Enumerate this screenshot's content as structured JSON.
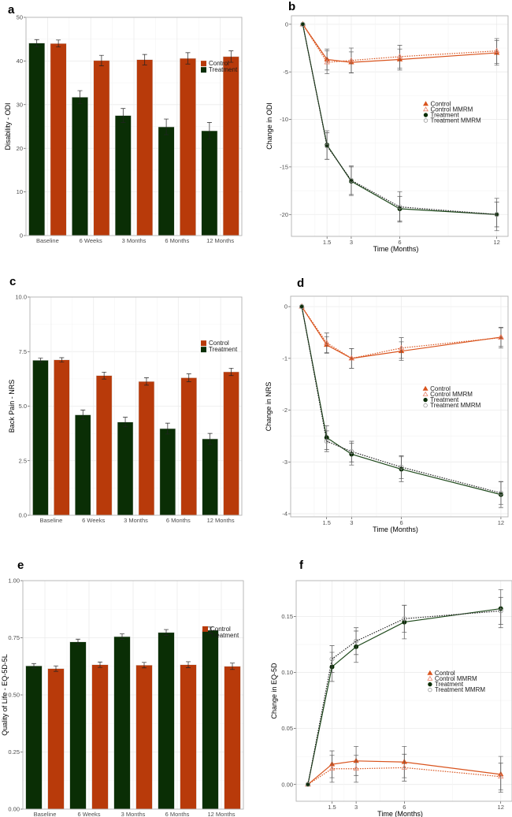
{
  "colors": {
    "control": "#b83a0a",
    "treatment": "#0a2e05",
    "control_line": "#d9541e",
    "treatment_line": "#1f4a1c",
    "mmrm_marker": "#999999",
    "errorbar": "#555555"
  },
  "chart_data": [
    {
      "panel": "a",
      "type": "bar",
      "ylabel": "Disability  - ODI",
      "ylim": [
        0,
        50
      ],
      "yticks": [
        0,
        10,
        20,
        30,
        40,
        50
      ],
      "ytick_labels": [
        "0",
        "10",
        "20",
        "30",
        "40",
        "50"
      ],
      "categories": [
        "Baseline",
        "6 Weeks",
        "3 Months",
        "6 Months",
        "12 Months"
      ],
      "legend": [
        "Control",
        "Treatment"
      ],
      "legend_position": "top-right",
      "series": [
        {
          "name": "Treatment",
          "values": [
            44.1,
            31.7,
            27.5,
            24.9,
            24.0
          ],
          "errors": [
            0.8,
            1.5,
            1.6,
            1.8,
            1.9
          ]
        },
        {
          "name": "Control",
          "values": [
            44.0,
            40.1,
            40.3,
            40.6,
            41.0
          ],
          "errors": [
            0.8,
            1.2,
            1.2,
            1.3,
            1.3
          ]
        }
      ]
    },
    {
      "panel": "b",
      "type": "line",
      "xlabel": "Time (Months)",
      "ylabel": "Change in ODI",
      "ylim": [
        -22.3,
        0.9
      ],
      "xlim": [
        -0.7,
        12.7
      ],
      "xticks": [
        1.5,
        3,
        6,
        12
      ],
      "xtick_labels": [
        "1.5",
        "3",
        "6",
        "12"
      ],
      "yticks": [
        0,
        -5,
        -10,
        -15,
        -20
      ],
      "ytick_labels": [
        "0",
        "-5",
        "-10",
        "-15",
        "-20"
      ],
      "legend_position": "right",
      "x": [
        0,
        1.5,
        3,
        6,
        12
      ],
      "series": [
        {
          "name": "Control",
          "values": [
            0,
            -3.7,
            -4.0,
            -3.7,
            -3.0
          ],
          "errors": [
            0,
            1.1,
            1.1,
            1.1,
            1.3
          ]
        },
        {
          "name": "Control MMRM",
          "values": [
            0,
            -4.0,
            -3.8,
            -3.4,
            -2.8
          ],
          "errors": [
            0,
            1.2,
            1.3,
            1.2,
            1.3
          ]
        },
        {
          "name": "Treatment",
          "values": [
            0,
            -12.7,
            -16.5,
            -19.4,
            -20.0
          ],
          "errors": [
            0,
            1.5,
            1.5,
            1.3,
            1.3
          ]
        },
        {
          "name": "Treatment MMRM",
          "values": [
            0,
            -12.8,
            -16.4,
            -19.2,
            -20.0
          ],
          "errors": [
            0,
            1.4,
            1.5,
            1.6,
            1.7
          ]
        }
      ]
    },
    {
      "panel": "c",
      "type": "bar",
      "ylabel": "Back Pain  - NRS",
      "ylim": [
        0,
        10
      ],
      "yticks": [
        0,
        2.5,
        5,
        7.5,
        10
      ],
      "ytick_labels": [
        "0.0",
        "2.5",
        "5.0",
        "7.5",
        "10.0"
      ],
      "categories": [
        "Baseline",
        "6 Weeks",
        "3 Months",
        "6 Months",
        "12 Months"
      ],
      "legend": [
        "Control",
        "Treatment"
      ],
      "legend_position": "top-right",
      "series": [
        {
          "name": "Treatment",
          "values": [
            7.1,
            4.6,
            4.27,
            3.97,
            3.5
          ],
          "errors": [
            0.1,
            0.22,
            0.22,
            0.25,
            0.25
          ]
        },
        {
          "name": "Control",
          "values": [
            7.12,
            6.4,
            6.13,
            6.3,
            6.57
          ],
          "errors": [
            0.1,
            0.16,
            0.17,
            0.18,
            0.17
          ]
        }
      ]
    },
    {
      "panel": "d",
      "type": "line",
      "xlabel": "Time (Months)",
      "ylabel": "Change in NRS",
      "ylim": [
        -4.06,
        0.2
      ],
      "xlim": [
        -0.67,
        12.43
      ],
      "xticks": [
        1.5,
        3,
        6,
        12
      ],
      "xtick_labels": [
        "1.5",
        "3",
        "6",
        "12"
      ],
      "yticks": [
        0,
        -1,
        -2,
        -3,
        -4
      ],
      "ytick_labels": [
        "0",
        "-1",
        "-2",
        "-3",
        "-4"
      ],
      "legend_position": "right",
      "x": [
        0,
        1.5,
        3,
        6,
        12
      ],
      "series": [
        {
          "name": "Control",
          "values": [
            0,
            -0.74,
            -1.0,
            -0.86,
            -0.59
          ],
          "errors": [
            0,
            0.16,
            0.19,
            0.18,
            0.18
          ]
        },
        {
          "name": "Control MMRM",
          "values": [
            0,
            -0.7,
            -1.0,
            -0.8,
            -0.6
          ],
          "errors": [
            0,
            0.19,
            0.19,
            0.2,
            0.2
          ]
        },
        {
          "name": "Treatment",
          "values": [
            0,
            -2.53,
            -2.85,
            -3.14,
            -3.63
          ],
          "errors": [
            0,
            0.23,
            0.21,
            0.24,
            0.25
          ]
        },
        {
          "name": "Treatment MMRM",
          "values": [
            0,
            -2.6,
            -2.8,
            -3.1,
            -3.6
          ],
          "errors": [
            0,
            0.2,
            0.2,
            0.22,
            0.22
          ]
        }
      ]
    },
    {
      "panel": "e",
      "type": "bar",
      "ylabel": "Quality of Life  - EQ-5D-5L",
      "ylim": [
        0,
        1
      ],
      "yticks": [
        0,
        0.25,
        0.5,
        0.75,
        1
      ],
      "ytick_labels": [
        "0.00",
        "0.25",
        "0.50",
        "0.75",
        "1.00"
      ],
      "categories": [
        "Baseline",
        "6 Weeks",
        "3 Months",
        "6 Months",
        "12 Months"
      ],
      "legend": [
        "Control",
        "Treatment"
      ],
      "legend_position": "top-right",
      "series": [
        {
          "name": "Treatment",
          "values": [
            0.627,
            0.732,
            0.755,
            0.773,
            0.783
          ],
          "errors": [
            0.01,
            0.012,
            0.012,
            0.013,
            0.014
          ]
        },
        {
          "name": "Control",
          "values": [
            0.615,
            0.632,
            0.63,
            0.632,
            0.625
          ],
          "errors": [
            0.012,
            0.012,
            0.012,
            0.013,
            0.014
          ]
        }
      ]
    },
    {
      "panel": "f",
      "type": "line",
      "xlabel": "Time (Months)",
      "ylabel": "Change in EQ-5D",
      "ylim": [
        -0.015,
        0.182
      ],
      "xlim": [
        -0.73,
        12.7
      ],
      "xticks": [
        1.5,
        3,
        6,
        12
      ],
      "xtick_labels": [
        "1.5",
        "3",
        "6",
        "12"
      ],
      "yticks": [
        0,
        0.05,
        0.1,
        0.15
      ],
      "ytick_labels": [
        "0.00",
        "0.05",
        "0.10",
        "0.15"
      ],
      "legend_position": "right",
      "x": [
        0,
        1.5,
        3,
        6,
        12
      ],
      "series": [
        {
          "name": "Control",
          "values": [
            0,
            0.018,
            0.021,
            0.02,
            0.009
          ],
          "errors": [
            0,
            0.012,
            0.013,
            0.014,
            0.016
          ]
        },
        {
          "name": "Control MMRM",
          "values": [
            0,
            0.014,
            0.014,
            0.015,
            0.007
          ],
          "errors": [
            0,
            0.012,
            0.012,
            0.012,
            0.012
          ]
        },
        {
          "name": "Treatment",
          "values": [
            0,
            0.105,
            0.123,
            0.145,
            0.157
          ],
          "errors": [
            0,
            0.013,
            0.014,
            0.015,
            0.017
          ]
        },
        {
          "name": "Treatment MMRM",
          "values": [
            0,
            0.112,
            0.128,
            0.148,
            0.155
          ],
          "errors": [
            0,
            0.012,
            0.012,
            0.012,
            0.012
          ]
        }
      ]
    }
  ]
}
